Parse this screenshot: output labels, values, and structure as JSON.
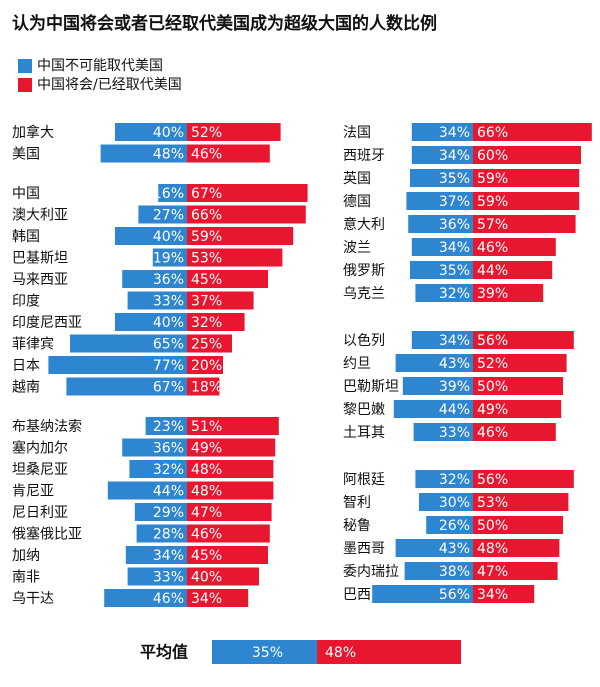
{
  "chart_data": {
    "type": "diverging-bar",
    "title": "认为中国将会或者已经取代美国成为超级大国的人数比例",
    "series": [
      {
        "name": "中国不可能取代美国",
        "color": "#2e86d0"
      },
      {
        "name": "中国将会/已经取代美国",
        "color": "#e8162f"
      }
    ],
    "groups": [
      {
        "categories": [
          "加拿大",
          "美国"
        ],
        "values": [
          [
            40,
            48
          ],
          [
            52,
            46
          ]
        ],
        "value_labels": [
          [
            "40%",
            "48%"
          ],
          [
            "52%",
            "46%"
          ]
        ]
      },
      {
        "categories": [
          "中国",
          "澳大利亚",
          "韩国",
          "巴基斯坦",
          "马来西亚",
          "印度",
          "印度尼西亚",
          "菲律宾",
          "日本",
          "越南"
        ],
        "values": [
          [
            16,
            27,
            40,
            19,
            36,
            33,
            40,
            65,
            77,
            67
          ],
          [
            67,
            66,
            59,
            53,
            45,
            37,
            32,
            25,
            20,
            18
          ]
        ],
        "value_labels": [
          [
            "16%",
            "27%",
            "40%",
            "19%",
            "36%",
            "33%",
            "40%",
            "65%",
            "77%",
            "67%"
          ],
          [
            "67%",
            "66%",
            "59%",
            "53%",
            "45%",
            "37%",
            "32%",
            "25%",
            "20%",
            "18%"
          ]
        ]
      },
      {
        "categories": [
          "布基纳法索",
          "塞内加尔",
          "坦桑尼亚",
          "肯尼亚",
          "尼日利亚",
          "俄塞俄比亚",
          "加纳",
          "南非",
          "乌干达"
        ],
        "values": [
          [
            23,
            36,
            32,
            44,
            29,
            28,
            34,
            33,
            46
          ],
          [
            51,
            49,
            48,
            48,
            47,
            46,
            45,
            40,
            34
          ]
        ],
        "value_labels": [
          [
            "23%",
            "36%",
            "32%",
            "44%",
            "29%",
            "28%",
            "34%",
            "33%",
            "46%"
          ],
          [
            "51%",
            "49%",
            "48%",
            "48%",
            "47%",
            "46%",
            "45%",
            "40%",
            "34%"
          ]
        ]
      },
      {
        "categories": [
          "法国",
          "西班牙",
          "英国",
          "德国",
          "意大利",
          "波兰",
          "俄罗斯",
          "乌克兰"
        ],
        "values": [
          [
            34,
            34,
            35,
            37,
            36,
            34,
            35,
            32
          ],
          [
            66,
            60,
            59,
            59,
            57,
            46,
            44,
            39
          ]
        ],
        "value_labels": [
          [
            "34%",
            "34%",
            "35%",
            "37%",
            "36%",
            "34%",
            "35%",
            "32%"
          ],
          [
            "66%",
            "60%",
            "59%",
            "59%",
            "57%",
            "46%",
            "44%",
            "39%"
          ]
        ]
      },
      {
        "categories": [
          "以色列",
          "约旦",
          "巴勒斯坦",
          "黎巴嫩",
          "土耳其"
        ],
        "values": [
          [
            34,
            43,
            39,
            44,
            33
          ],
          [
            56,
            52,
            50,
            49,
            46
          ]
        ],
        "value_labels": [
          [
            "34%",
            "43%",
            "39%",
            "44%",
            "33%"
          ],
          [
            "56%",
            "52%",
            "50%",
            "49%",
            "46%"
          ]
        ]
      },
      {
        "categories": [
          "阿根廷",
          "智利",
          "秘鲁",
          "墨西哥",
          "委内瑞拉",
          "巴西"
        ],
        "values": [
          [
            32,
            30,
            26,
            43,
            38,
            56
          ],
          [
            56,
            53,
            50,
            48,
            47,
            34
          ]
        ],
        "value_labels": [
          [
            "32%",
            "30%",
            "26%",
            "43%",
            "38%",
            "56%"
          ],
          [
            "56%",
            "53%",
            "50%",
            "48%",
            "47%",
            "34%"
          ]
        ]
      }
    ],
    "average": {
      "label": "平均值",
      "values": [
        35,
        48
      ],
      "value_labels": [
        "35%",
        "48%"
      ]
    }
  }
}
